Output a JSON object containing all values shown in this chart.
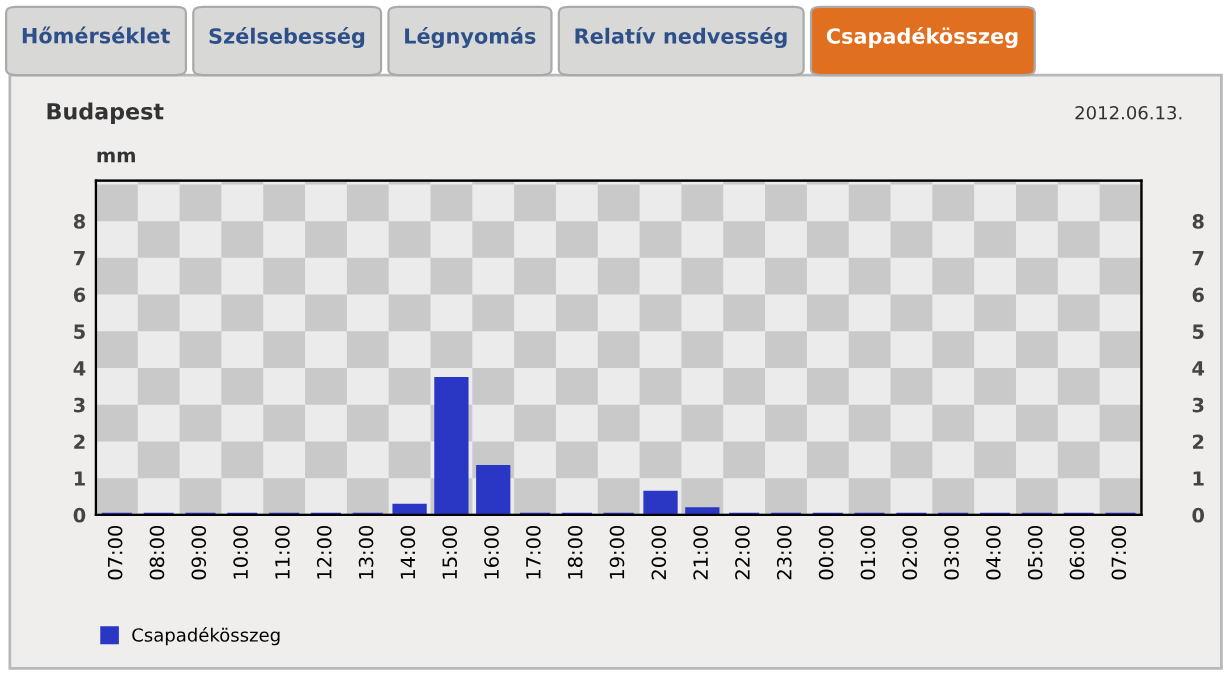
{
  "chart_data": {
    "type": "bar",
    "title": "Budapest",
    "ylabel": "mm",
    "annotations": [
      "Hőmérséklet",
      "Szélsebesség",
      "Légnyomás",
      "Relatív nedvesség",
      "Csapadékösszeg",
      "2012.06.13."
    ],
    "categories": [
      "07:00",
      "08:00",
      "09:00",
      "10:00",
      "11:00",
      "12:00",
      "13:00",
      "14:00",
      "15:00",
      "16:00",
      "17:00",
      "18:00",
      "19:00",
      "20:00",
      "21:00",
      "22:00",
      "23:00",
      "00:00",
      "01:00",
      "02:00",
      "03:00",
      "04:00",
      "05:00",
      "06:00",
      "07:00"
    ],
    "series": [
      {
        "name": "Csapadékösszeg",
        "color": "#2a36c4",
        "values": [
          0,
          0,
          0,
          0,
          0,
          0,
          0,
          0.25,
          3.7,
          1.3,
          0,
          0,
          0,
          0.6,
          0.15,
          0,
          0,
          0,
          0,
          0,
          0,
          0,
          0,
          0,
          0
        ]
      }
    ],
    "ylim": [
      0,
      9.1
    ],
    "yticks": [
      0,
      1,
      2,
      3,
      4,
      5,
      6,
      7,
      8
    ],
    "y2lim": [
      0,
      9.1
    ],
    "y2ticks": [
      0,
      1,
      2,
      3,
      4,
      5,
      6,
      7,
      8
    ],
    "legend": "bottom left"
  }
}
